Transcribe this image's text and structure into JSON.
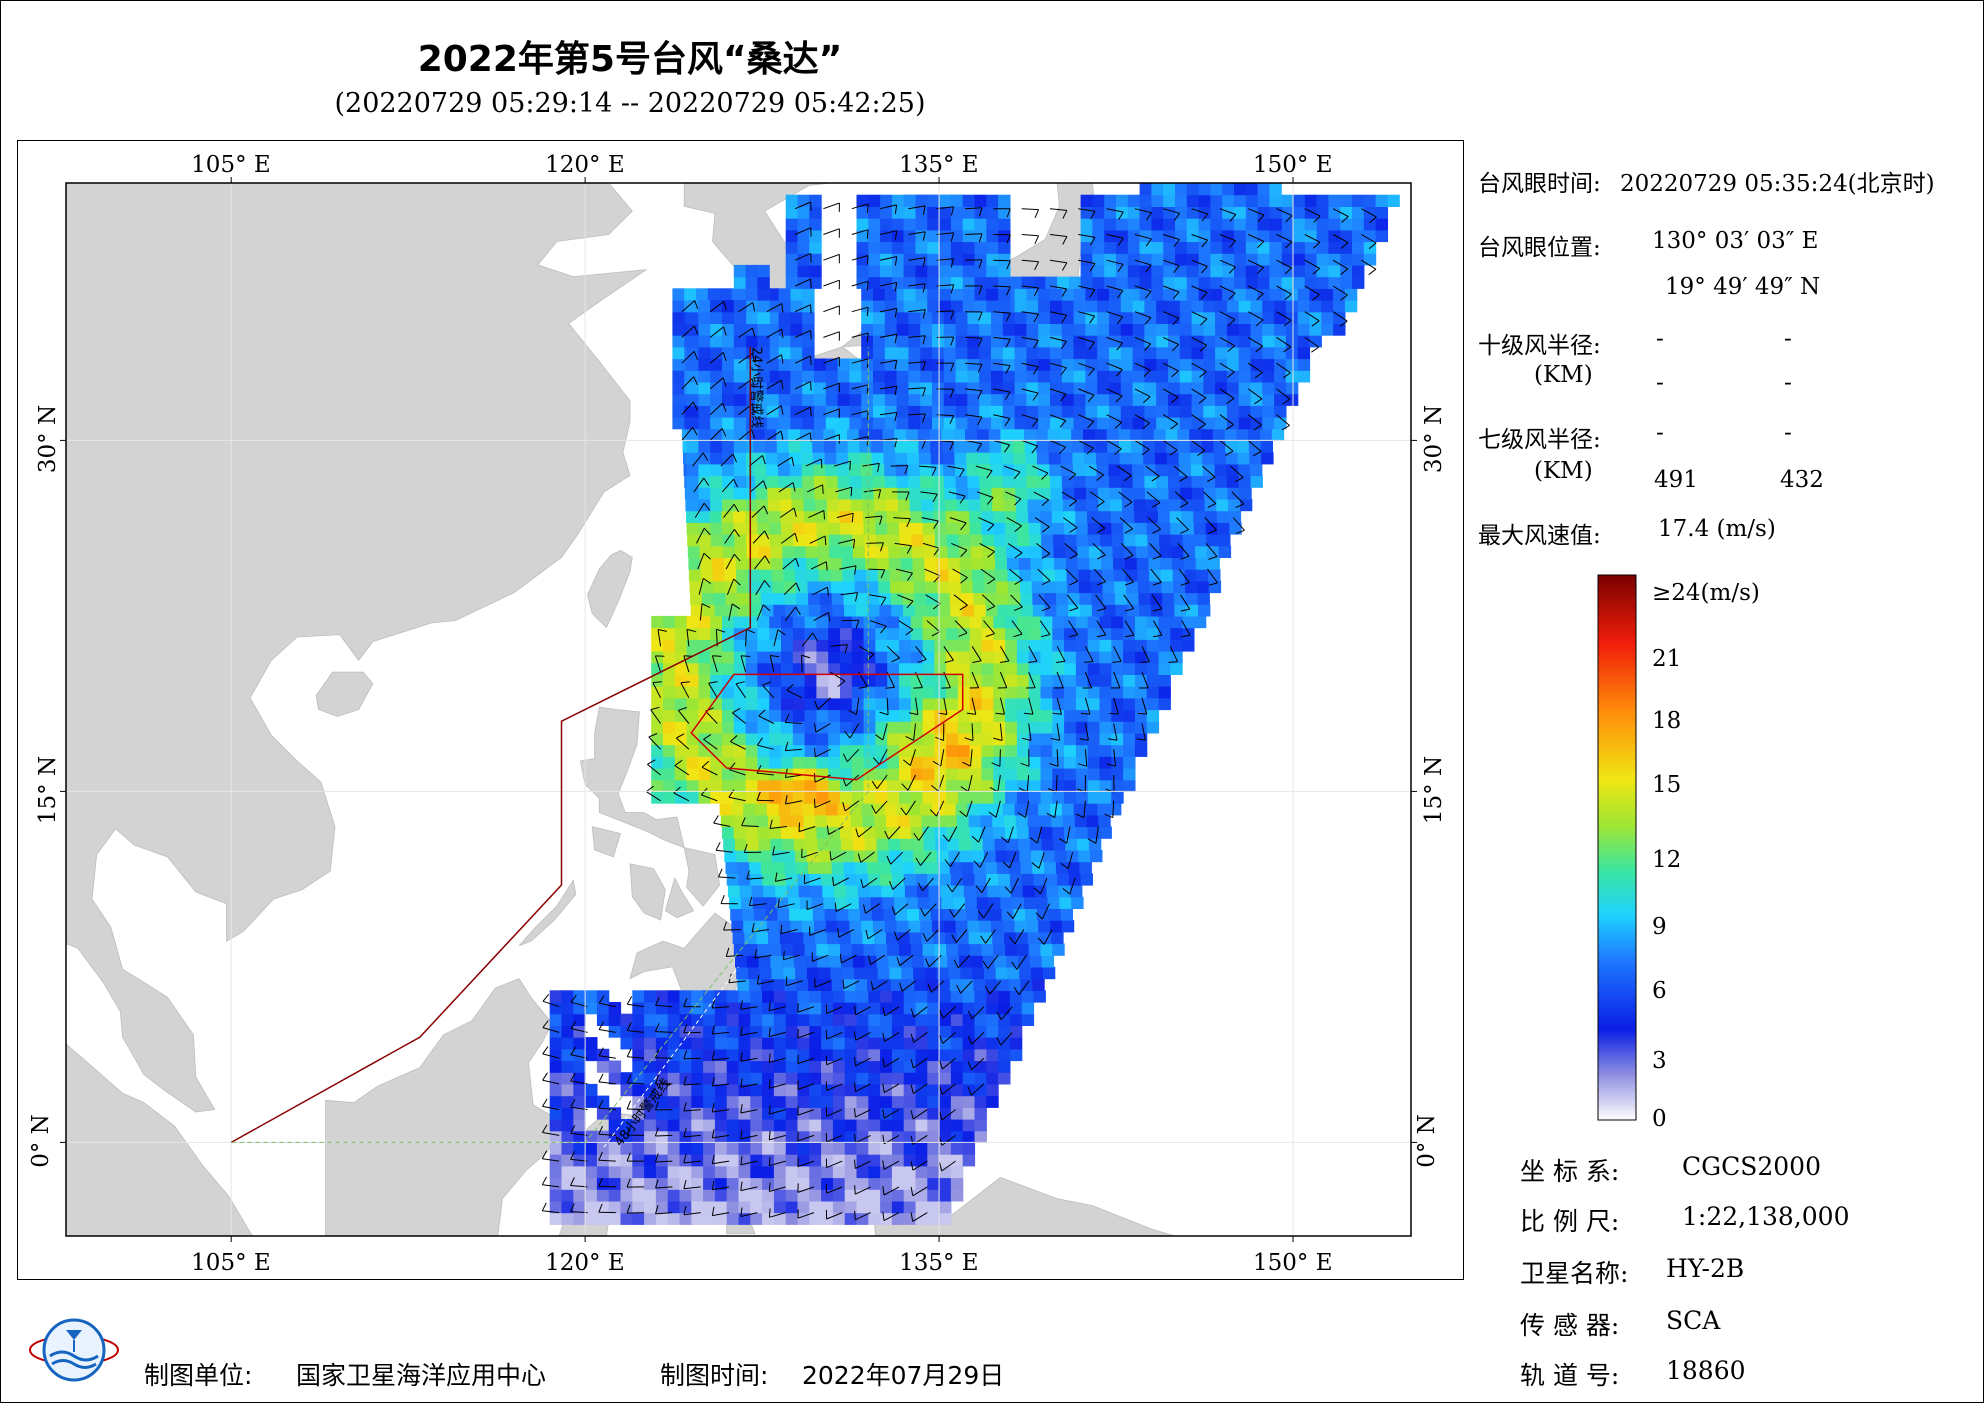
{
  "title": "2022年第5号台风“桑达”",
  "subtitle": "(20220729 05:29:14 -- 20220729 05:42:25)",
  "map": {
    "lon_labels": [
      "105° E",
      "120° E",
      "135° E",
      "150° E"
    ],
    "lat_labels": [
      "30° N",
      "15° N",
      "0° N"
    ],
    "lon_range": [
      98,
      155
    ],
    "lat_range": [
      -4,
      41
    ],
    "land_color": "#d3d3d3",
    "ocean_color": "#ffffff",
    "boundary_color": "#8b0000",
    "warning_line_24h_label": "24小时警戒线",
    "warning_line_48h_label": "48小时警戒线",
    "typhoon_eye": {
      "lon": 130.05,
      "lat": 19.83
    }
  },
  "info": {
    "eye_time_label": "台风眼时间:",
    "eye_time_value": "20220729 05:35:24(北京时)",
    "eye_pos_label": "台风眼位置:",
    "eye_lon": "130° 03′ 03″ E",
    "eye_lat": "19° 49′ 49″ N",
    "r10_label": "十级风半径:",
    "r10_unit": "(KM)",
    "r10_values": [
      "-",
      "-",
      "-",
      "-"
    ],
    "r7_label": "七级风半径:",
    "r7_unit": "(KM)",
    "r7_values": [
      "-",
      "-",
      "491",
      "432"
    ],
    "max_wind_label": "最大风速值:",
    "max_wind_value": "17.4  (m/s)"
  },
  "colorbar": {
    "labels": [
      "≥24(m/s)",
      "21",
      "18",
      "15",
      "12",
      "9",
      "6",
      "3",
      "0"
    ],
    "stops": [
      {
        "v": 0,
        "color": "#ffffff"
      },
      {
        "v": 2,
        "color": "#8f8fe0"
      },
      {
        "v": 4,
        "color": "#0a1ee6"
      },
      {
        "v": 7,
        "color": "#1e78ff"
      },
      {
        "v": 9,
        "color": "#1ed2ff"
      },
      {
        "v": 11,
        "color": "#3ce6a0"
      },
      {
        "v": 13,
        "color": "#a0e632"
      },
      {
        "v": 15,
        "color": "#f0e614"
      },
      {
        "v": 18,
        "color": "#ff8c0a"
      },
      {
        "v": 21,
        "color": "#f01e0a"
      },
      {
        "v": 24,
        "color": "#7a0000"
      }
    ]
  },
  "meta": {
    "coord_label": "坐 标 系:",
    "coord_value": "CGCS2000",
    "scale_label": "比 例 尺:",
    "scale_value": "1:22,138,000",
    "sat_label": "卫星名称:",
    "sat_value": "HY-2B",
    "sensor_label": "传 感 器:",
    "sensor_value": "SCA",
    "orbit_label": "轨 道 号:",
    "orbit_value": "18860"
  },
  "footer": {
    "org_label": "制图单位:",
    "org_value": "国家卫星海洋应用中心",
    "date_label": "制图时间:",
    "date_value": "2022年07月29日"
  }
}
